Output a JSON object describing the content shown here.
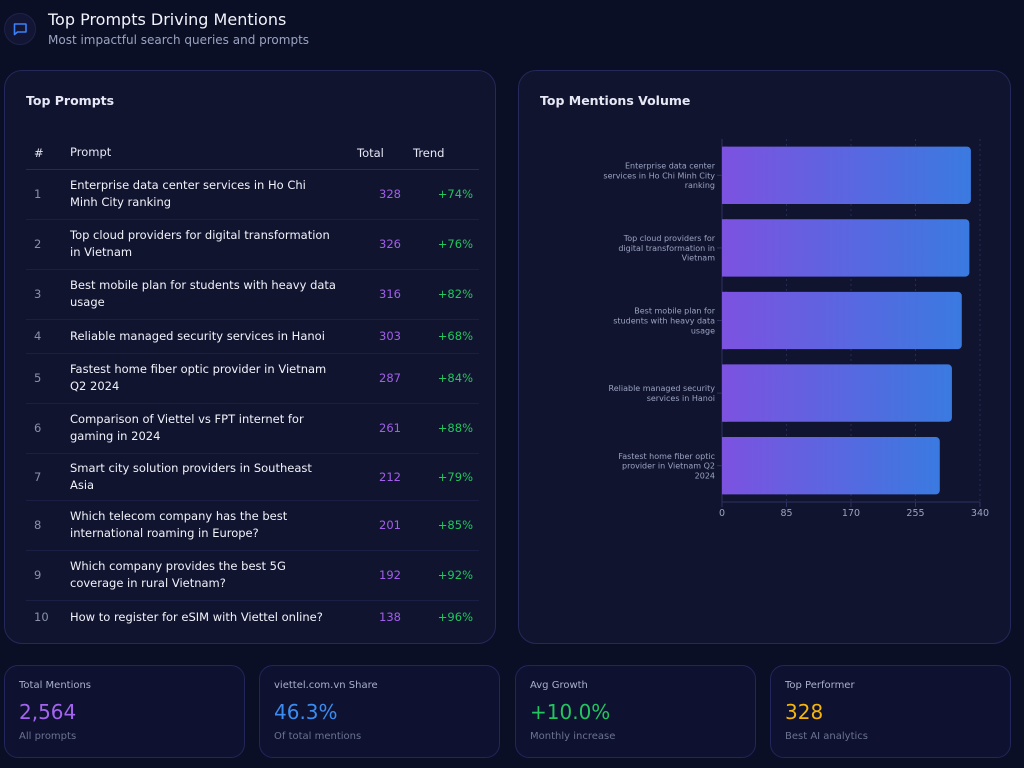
{
  "header": {
    "icon": "message-square-icon",
    "title": "Top Prompts Driving Mentions",
    "subtitle": "Most impactful search queries and prompts"
  },
  "prompts_table": {
    "title": "Top Prompts",
    "columns": [
      "#",
      "Prompt",
      "Total",
      "Trend"
    ],
    "rows": [
      {
        "rank": "1",
        "prompt": "Enterprise data center services in Ho Chi Minh City ranking",
        "total": "328",
        "trend": "+74%"
      },
      {
        "rank": "2",
        "prompt": "Top cloud providers for digital transformation in Vietnam",
        "total": "326",
        "trend": "+76%"
      },
      {
        "rank": "3",
        "prompt": "Best mobile plan for students with heavy data usage",
        "total": "316",
        "trend": "+82%"
      },
      {
        "rank": "4",
        "prompt": "Reliable managed security services in Hanoi",
        "total": "303",
        "trend": "+68%"
      },
      {
        "rank": "5",
        "prompt": "Fastest home fiber optic provider in Vietnam Q2 2024",
        "total": "287",
        "trend": "+84%"
      },
      {
        "rank": "6",
        "prompt": "Comparison of Viettel vs FPT internet for gaming in 2024",
        "total": "261",
        "trend": "+88%"
      },
      {
        "rank": "7",
        "prompt": "Smart city solution providers in Southeast Asia",
        "total": "212",
        "trend": "+79%"
      },
      {
        "rank": "8",
        "prompt": "Which telecom company has the best international roaming in Europe?",
        "total": "201",
        "trend": "+85%"
      },
      {
        "rank": "9",
        "prompt": "Which company provides the best 5G coverage in rural Vietnam?",
        "total": "192",
        "trend": "+92%"
      },
      {
        "rank": "10",
        "prompt": "How to register for eSIM with Viettel online?",
        "total": "138",
        "trend": "+96%"
      }
    ]
  },
  "chart_card": {
    "title": "Top Mentions Volume"
  },
  "chart_data": {
    "type": "bar",
    "orientation": "horizontal",
    "title": "Top Mentions Volume",
    "categories": [
      [
        "Enterprise data center",
        "services in Ho Chi Minh City",
        "ranking"
      ],
      [
        "Top cloud providers for",
        "digital transformation in",
        "Vietnam"
      ],
      [
        "Best mobile plan for",
        "students with heavy data",
        "usage"
      ],
      [
        "Reliable managed security",
        "services in Hanoi"
      ],
      [
        "Fastest home fiber optic",
        "provider in Vietnam Q2",
        "2024"
      ]
    ],
    "values": [
      328,
      326,
      316,
      303,
      287
    ],
    "xlim": [
      0,
      340
    ],
    "xticks": [
      "0",
      "85",
      "170",
      "255",
      "340"
    ],
    "grid": true,
    "gradient": [
      "#7c52e0",
      "#3a7ae0"
    ]
  },
  "stats": [
    {
      "label": "Total Mentions",
      "value": "2,564",
      "sub": "All prompts",
      "color": "#a464f0"
    },
    {
      "label": "viettel.com.vn Share",
      "value": "46.3%",
      "sub": "Of total mentions",
      "color": "#3b8cf0"
    },
    {
      "label": "Avg Growth",
      "value": "+10.0%",
      "sub": "Monthly increase",
      "color": "#22c55e"
    },
    {
      "label": "Top Performer",
      "value": "328",
      "sub": "Best AI analytics",
      "color": "#f5b50a"
    }
  ],
  "colors": {
    "background": "#0b0f26",
    "card": "#11142f",
    "accent_purple": "#a060e8",
    "accent_green": "#22c55e",
    "icon_blue": "#3b82f6"
  }
}
